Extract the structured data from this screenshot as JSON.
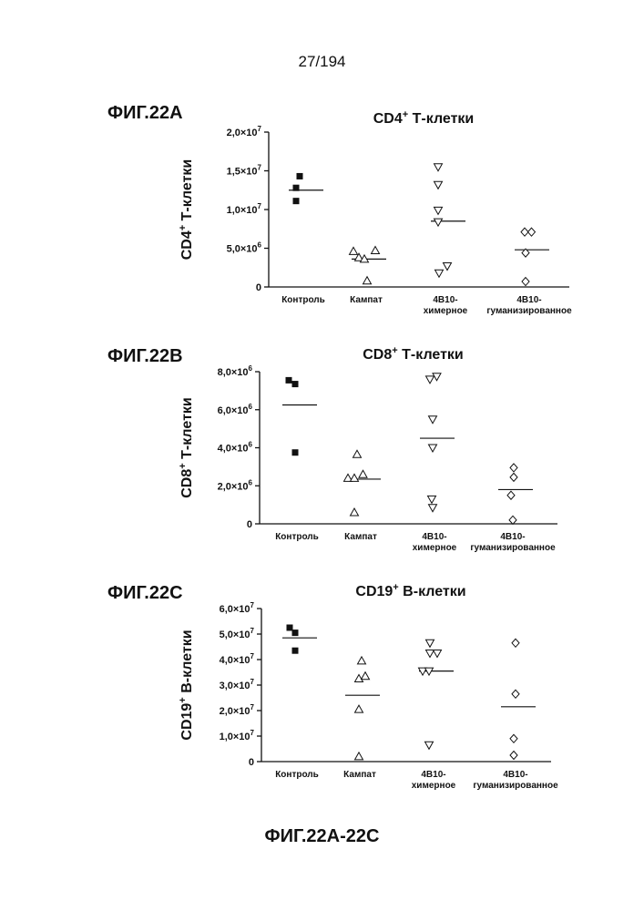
{
  "page_number": "27/194",
  "figure_caption": "ФИГ.22А-22С",
  "chart_data": [
    {
      "fig_label": "ФИГ.22А",
      "type": "scatter",
      "title": "CD4",
      "title_sup": "+",
      "title_rest": " Т-клетки",
      "ylabel": "CD4",
      "ylabel_sup": "+",
      "ylabel_rest": " Т-клетки",
      "ylim": [
        0,
        20000000
      ],
      "yticks": [
        {
          "value": 0,
          "mant": "0",
          "exp": ""
        },
        {
          "value": 5000000,
          "mant": "5,0×10",
          "exp": "6"
        },
        {
          "value": 10000000,
          "mant": "1,0×10",
          "exp": "7"
        },
        {
          "value": 15000000,
          "mant": "1,5×10",
          "exp": "7"
        },
        {
          "value": 20000000,
          "mant": "2,0×10",
          "exp": "7"
        }
      ],
      "categories": [
        {
          "label1": "Контроль",
          "label2": ""
        },
        {
          "label1": "Кампат",
          "label2": ""
        },
        {
          "label1": "4В10-",
          "label2": "химерное"
        },
        {
          "label1": "4В10-",
          "label2": "гуманизированное"
        }
      ],
      "series": [
        {
          "name": "Контроль",
          "marker": "square-filled",
          "points": [
            [
              -0.08,
              14300000
            ],
            [
              -0.16,
              12800000
            ],
            [
              -0.16,
              11100000
            ]
          ],
          "median": 12500000
        },
        {
          "name": "Кампат",
          "marker": "triangle-up-open",
          "points": [
            [
              -0.28,
              4600000
            ],
            [
              -0.16,
              3800000
            ],
            [
              -0.04,
              3600000
            ],
            [
              0.2,
              4700000
            ],
            [
              0.02,
              800000
            ]
          ],
          "median": 3600000
        },
        {
          "name": "4В10-химерное",
          "marker": "triangle-down-open",
          "points": [
            [
              -0.16,
              15500000
            ],
            [
              -0.16,
              13200000
            ],
            [
              -0.16,
              9900000
            ],
            [
              -0.16,
              8400000
            ],
            [
              0.04,
              2700000
            ],
            [
              -0.14,
              1800000
            ]
          ],
          "median": 8500000
        },
        {
          "name": "4В10-гуманизированное",
          "marker": "diamond-open",
          "points": [
            [
              -0.1,
              7100000
            ],
            [
              0.05,
              7100000
            ],
            [
              -0.08,
              4400000
            ],
            [
              -0.08,
              700000
            ]
          ],
          "median": 4800000
        }
      ]
    },
    {
      "fig_label": "ФИГ.22В",
      "type": "scatter",
      "title": "CD8",
      "title_sup": "+",
      "title_rest": " Т-клетки",
      "ylabel": "CD8",
      "ylabel_sup": "+",
      "ylabel_rest": " Т-клетки",
      "ylim": [
        0,
        8000000
      ],
      "yticks": [
        {
          "value": 0,
          "mant": "0",
          "exp": ""
        },
        {
          "value": 2000000,
          "mant": "2,0×10",
          "exp": "6"
        },
        {
          "value": 4000000,
          "mant": "4,0×10",
          "exp": "6"
        },
        {
          "value": 6000000,
          "mant": "6,0×10",
          "exp": "6"
        },
        {
          "value": 8000000,
          "mant": "8,0×10",
          "exp": "6"
        }
      ],
      "categories": [
        {
          "label1": "Контроль",
          "label2": ""
        },
        {
          "label1": "Кампат",
          "label2": ""
        },
        {
          "label1": "4В10-",
          "label2": "химерное"
        },
        {
          "label1": "4В10-",
          "label2": "гуманизированное"
        }
      ],
      "series": [
        {
          "name": "Контроль",
          "marker": "square-filled",
          "points": [
            [
              -0.18,
              7550000
            ],
            [
              -0.04,
              7350000
            ],
            [
              -0.04,
              3750000
            ]
          ],
          "median": 6250000
        },
        {
          "name": "Кампат",
          "marker": "triangle-up-open",
          "points": [
            [
              -0.08,
              3650000
            ],
            [
              -0.28,
              2400000
            ],
            [
              -0.14,
              2400000
            ],
            [
              0.05,
              2600000
            ],
            [
              -0.14,
              600000
            ]
          ],
          "median": 2350000
        },
        {
          "name": "4В10-химерное",
          "marker": "triangle-down-open",
          "points": [
            [
              -0.1,
              7600000
            ],
            [
              0.05,
              7750000
            ],
            [
              -0.04,
              5500000
            ],
            [
              -0.04,
              4000000
            ],
            [
              -0.06,
              1300000
            ],
            [
              -0.04,
              850000
            ]
          ],
          "median": 4500000
        },
        {
          "name": "4В10-гуманизированное",
          "marker": "diamond-open",
          "points": [
            [
              0.02,
              2950000
            ],
            [
              0.02,
              2450000
            ],
            [
              -0.04,
              1500000
            ],
            [
              0.0,
              200000
            ]
          ],
          "median": 1800000
        }
      ]
    },
    {
      "fig_label": "ФИГ.22С",
      "type": "scatter",
      "title": "CD19",
      "title_sup": "+",
      "title_rest": " В-клетки",
      "ylabel": "CD19",
      "ylabel_sup": "+",
      "ylabel_rest": " В-клетки",
      "ylim": [
        0,
        60000000
      ],
      "yticks": [
        {
          "value": 0,
          "mant": "0",
          "exp": ""
        },
        {
          "value": 10000000,
          "mant": "1,0×10",
          "exp": "7"
        },
        {
          "value": 20000000,
          "mant": "2,0×10",
          "exp": "7"
        },
        {
          "value": 30000000,
          "mant": "3,0×10",
          "exp": "7"
        },
        {
          "value": 40000000,
          "mant": "4,0×10",
          "exp": "7"
        },
        {
          "value": 50000000,
          "mant": "5,0×10",
          "exp": "7"
        },
        {
          "value": 60000000,
          "mant": "6,0×10",
          "exp": "7"
        }
      ],
      "categories": [
        {
          "label1": "Контроль",
          "label2": ""
        },
        {
          "label1": "Кампат",
          "label2": ""
        },
        {
          "label1": "4В10-",
          "label2": "химерное"
        },
        {
          "label1": "4В10-",
          "label2": "гуманизированное"
        }
      ],
      "series": [
        {
          "name": "Контроль",
          "marker": "square-filled",
          "points": [
            [
              -0.16,
              52500000
            ],
            [
              -0.04,
              50500000
            ],
            [
              -0.04,
              43500000
            ]
          ],
          "median": 48500000
        },
        {
          "name": "Кампат",
          "marker": "triangle-up-open",
          "points": [
            [
              0.04,
              39500000
            ],
            [
              -0.02,
              32500000
            ],
            [
              0.12,
              33500000
            ],
            [
              -0.02,
              20500000
            ],
            [
              -0.02,
              2000000
            ]
          ],
          "median": 26000000
        },
        {
          "name": "4В10-химерное",
          "marker": "triangle-down-open",
          "points": [
            [
              -0.08,
              46500000
            ],
            [
              -0.08,
              42500000
            ],
            [
              0.08,
              42500000
            ],
            [
              -0.24,
              35500000
            ],
            [
              -0.1,
              35500000
            ],
            [
              -0.1,
              6500000
            ]
          ],
          "median": 35500000
        },
        {
          "name": "4В10-гуманизированное",
          "marker": "diamond-open",
          "points": [
            [
              0.0,
              46500000
            ],
            [
              0.0,
              26500000
            ],
            [
              -0.04,
              9000000
            ],
            [
              -0.04,
              2500000
            ]
          ],
          "median": 21500000
        }
      ]
    }
  ]
}
